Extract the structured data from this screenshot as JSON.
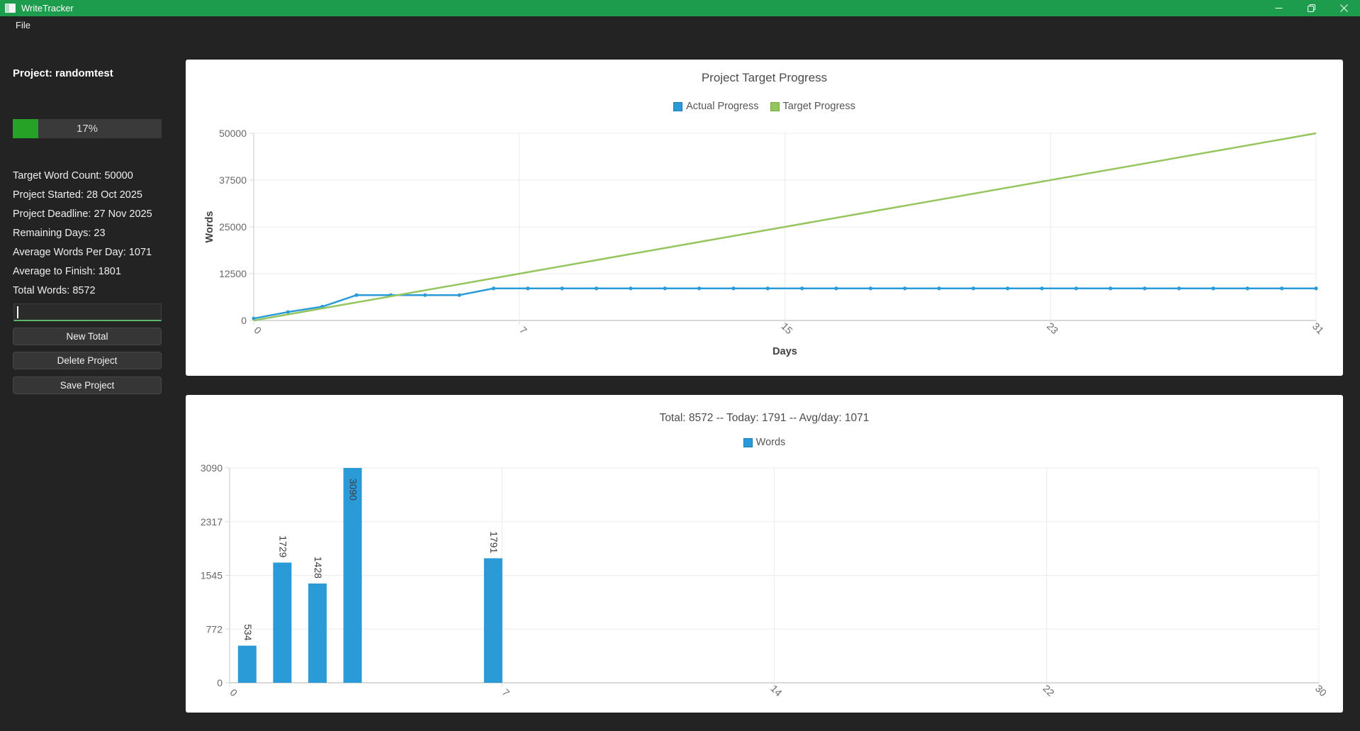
{
  "window": {
    "title": "WriteTracker"
  },
  "menu": {
    "file_label": "File"
  },
  "sidebar": {
    "project_title": "Project: randomtest",
    "progress": {
      "percent": 17,
      "label": "17%",
      "fill_color": "#26a326",
      "track_color": "#3a3a3a"
    },
    "stats": [
      "Target Word Count: 50000",
      "Project Started: 28 Oct 2025",
      "Project Deadline: 27 Nov 2025",
      "Remaining Days: 23",
      "Average Words Per Day: 1071",
      "Average to Finish: 1801",
      "Total Words: 8572"
    ],
    "input": {
      "value": "",
      "placeholder": ""
    },
    "buttons": {
      "new_total": "New Total",
      "delete_project": "Delete Project",
      "save_project": "Save Project"
    }
  },
  "colors": {
    "titlebar_green": "#1e9c4d",
    "window_background": "#232323",
    "chart_blue": "#2b9bd7",
    "chart_green": "#95c55e",
    "grid_line": "#ececec",
    "axis_line": "#d9d9d9"
  },
  "chart_data": [
    {
      "type": "line",
      "title": "Project Target Progress",
      "xlabel": "Days",
      "ylabel": "Words",
      "xlim": [
        0,
        31
      ],
      "ylim": [
        0,
        50000
      ],
      "grid": true,
      "legend_position": "top",
      "y_ticks": [
        0,
        12500,
        25000,
        37500,
        50000
      ],
      "x_ticks": [
        {
          "label": "0",
          "f": 0
        },
        {
          "label": "7",
          "f": 0.25
        },
        {
          "label": "15",
          "f": 0.5
        },
        {
          "label": "23",
          "f": 0.75
        },
        {
          "label": "31",
          "f": 1
        }
      ],
      "series": [
        {
          "name": "Actual Progress",
          "color": "#2b9bd7",
          "border": "#1d7cb4",
          "markers": true,
          "values": [
            534,
            2263,
            3691,
            6781,
            6781,
            6781,
            6781,
            8572,
            8572,
            8572,
            8572,
            8572,
            8572,
            8572,
            8572,
            8572,
            8572,
            8572,
            8572,
            8572,
            8572,
            8572,
            8572,
            8572,
            8572,
            8572,
            8572,
            8572,
            8572,
            8572,
            8572,
            8572
          ]
        },
        {
          "name": "Target Progress",
          "color": "#95c55e",
          "border": "#73a93f",
          "markers": false,
          "x": [
            0,
            31
          ],
          "values": [
            0,
            50000
          ]
        }
      ]
    },
    {
      "type": "bar",
      "title": "Total: 8572 -- Today: 1791 -- Avg/day: 1071",
      "xlabel": "",
      "ylabel": "",
      "xlim": [
        0,
        30
      ],
      "ylim": [
        0,
        3090
      ],
      "grid": true,
      "legend_position": "top",
      "categories_count": 31,
      "y_ticks": [
        0,
        772,
        1545,
        2317,
        3090
      ],
      "x_ticks": [
        {
          "label": "0",
          "f": 0
        },
        {
          "label": "7",
          "f": 0.25
        },
        {
          "label": "14",
          "f": 0.5
        },
        {
          "label": "22",
          "f": 0.75
        },
        {
          "label": "30",
          "f": 1
        }
      ],
      "series": [
        {
          "name": "Words",
          "color": "#2b9bd7",
          "border": "#1d7cb4",
          "points": [
            {
              "day": 0,
              "value": 534
            },
            {
              "day": 1,
              "value": 1729
            },
            {
              "day": 2,
              "value": 1428
            },
            {
              "day": 3,
              "value": 3090
            },
            {
              "day": 7,
              "value": 1791
            }
          ]
        }
      ]
    }
  ]
}
